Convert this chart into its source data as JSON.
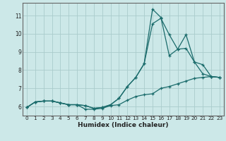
{
  "xlabel": "Humidex (Indice chaleur)",
  "bg_color": "#cce8e8",
  "grid_color": "#aacccc",
  "line_color": "#1a6b6b",
  "xlim": [
    -0.5,
    23.5
  ],
  "ylim": [
    5.5,
    11.7
  ],
  "xticks": [
    0,
    1,
    2,
    3,
    4,
    5,
    6,
    7,
    8,
    9,
    10,
    11,
    12,
    13,
    14,
    15,
    16,
    17,
    18,
    19,
    20,
    21,
    22,
    23
  ],
  "yticks": [
    6,
    7,
    8,
    9,
    10,
    11
  ],
  "line1_x": [
    0,
    1,
    2,
    3,
    4,
    5,
    6,
    7,
    8,
    9,
    10,
    11,
    12,
    13,
    14,
    15,
    16,
    17,
    18,
    19,
    20,
    21,
    22,
    23
  ],
  "line1_y": [
    5.95,
    6.25,
    6.3,
    6.3,
    6.2,
    6.1,
    6.1,
    5.85,
    5.85,
    5.9,
    6.05,
    6.1,
    6.35,
    6.55,
    6.65,
    6.7,
    7.0,
    7.1,
    7.25,
    7.4,
    7.55,
    7.6,
    7.65,
    7.6
  ],
  "line2_x": [
    0,
    1,
    2,
    3,
    4,
    5,
    6,
    7,
    8,
    9,
    10,
    11,
    12,
    13,
    14,
    15,
    16,
    17,
    18,
    19,
    20,
    21,
    22,
    23
  ],
  "line2_y": [
    5.95,
    6.25,
    6.3,
    6.3,
    6.2,
    6.1,
    6.1,
    6.05,
    5.9,
    5.95,
    6.1,
    6.45,
    7.1,
    7.6,
    8.35,
    10.55,
    10.85,
    9.95,
    9.15,
    9.2,
    8.45,
    8.3,
    7.65,
    7.6
  ],
  "line3_x": [
    0,
    1,
    2,
    3,
    4,
    5,
    6,
    7,
    8,
    9,
    10,
    11,
    12,
    13,
    14,
    15,
    16,
    17,
    18,
    19,
    20,
    21,
    22,
    23
  ],
  "line3_y": [
    5.95,
    6.25,
    6.3,
    6.3,
    6.2,
    6.1,
    6.1,
    6.05,
    5.9,
    5.95,
    6.1,
    6.45,
    7.1,
    7.6,
    8.35,
    11.35,
    10.9,
    8.8,
    9.15,
    9.95,
    8.45,
    7.8,
    7.65,
    7.6
  ]
}
